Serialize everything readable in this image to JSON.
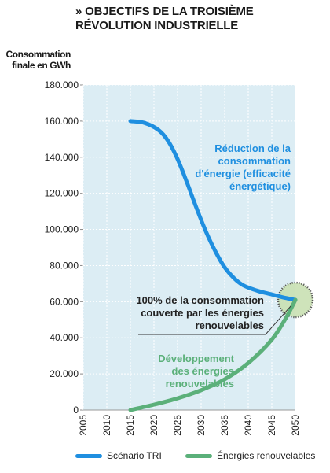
{
  "chart_data": {
    "type": "line",
    "title": "» OBJECTIFS DE LA TROISIÈME RÉVOLUTION INDUSTRIELLE",
    "ylabel": "Consommation finale en GWh",
    "xlabel": "",
    "xlim": [
      2005,
      2050
    ],
    "ylim": [
      0,
      180000
    ],
    "x_ticks": [
      "2005",
      "2010",
      "2015",
      "2020",
      "2025",
      "2030",
      "2035",
      "2040",
      "2045",
      "2050"
    ],
    "y_ticks": [
      "0",
      "20.000",
      "40.000",
      "60.000",
      "80.000",
      "100.000",
      "120.000",
      "140.000",
      "160.000",
      "180.000"
    ],
    "series": [
      {
        "name": "Scénario TRI",
        "color": "#1f8fe0",
        "x": [
          2015,
          2018,
          2021,
          2023,
          2025,
          2027,
          2029,
          2031,
          2033,
          2035,
          2037,
          2039,
          2042,
          2045,
          2048,
          2050
        ],
        "y": [
          160000,
          159000,
          155000,
          149000,
          139000,
          126000,
          112000,
          99000,
          88000,
          79000,
          73000,
          69000,
          66000,
          64000,
          62000,
          61000
        ]
      },
      {
        "name": "Énergies renouvelables",
        "color": "#5bb07a",
        "x": [
          2015,
          2020,
          2025,
          2030,
          2035,
          2040,
          2045,
          2048,
          2050
        ],
        "y": [
          0,
          3000,
          6500,
          11000,
          17000,
          26000,
          39000,
          51000,
          61000
        ]
      }
    ],
    "annotations": [
      {
        "lines": [
          "Réduction de la",
          "consommation",
          "d'énergie (efficacité",
          "énergétique)"
        ]
      },
      {
        "lines": [
          "100% de la consommation",
          "couverte par les énergies",
          "renouvelables"
        ]
      },
      {
        "lines": [
          "Développement",
          "des énergies",
          "renouvelables"
        ]
      }
    ],
    "grid": true,
    "legend": "bottom"
  }
}
